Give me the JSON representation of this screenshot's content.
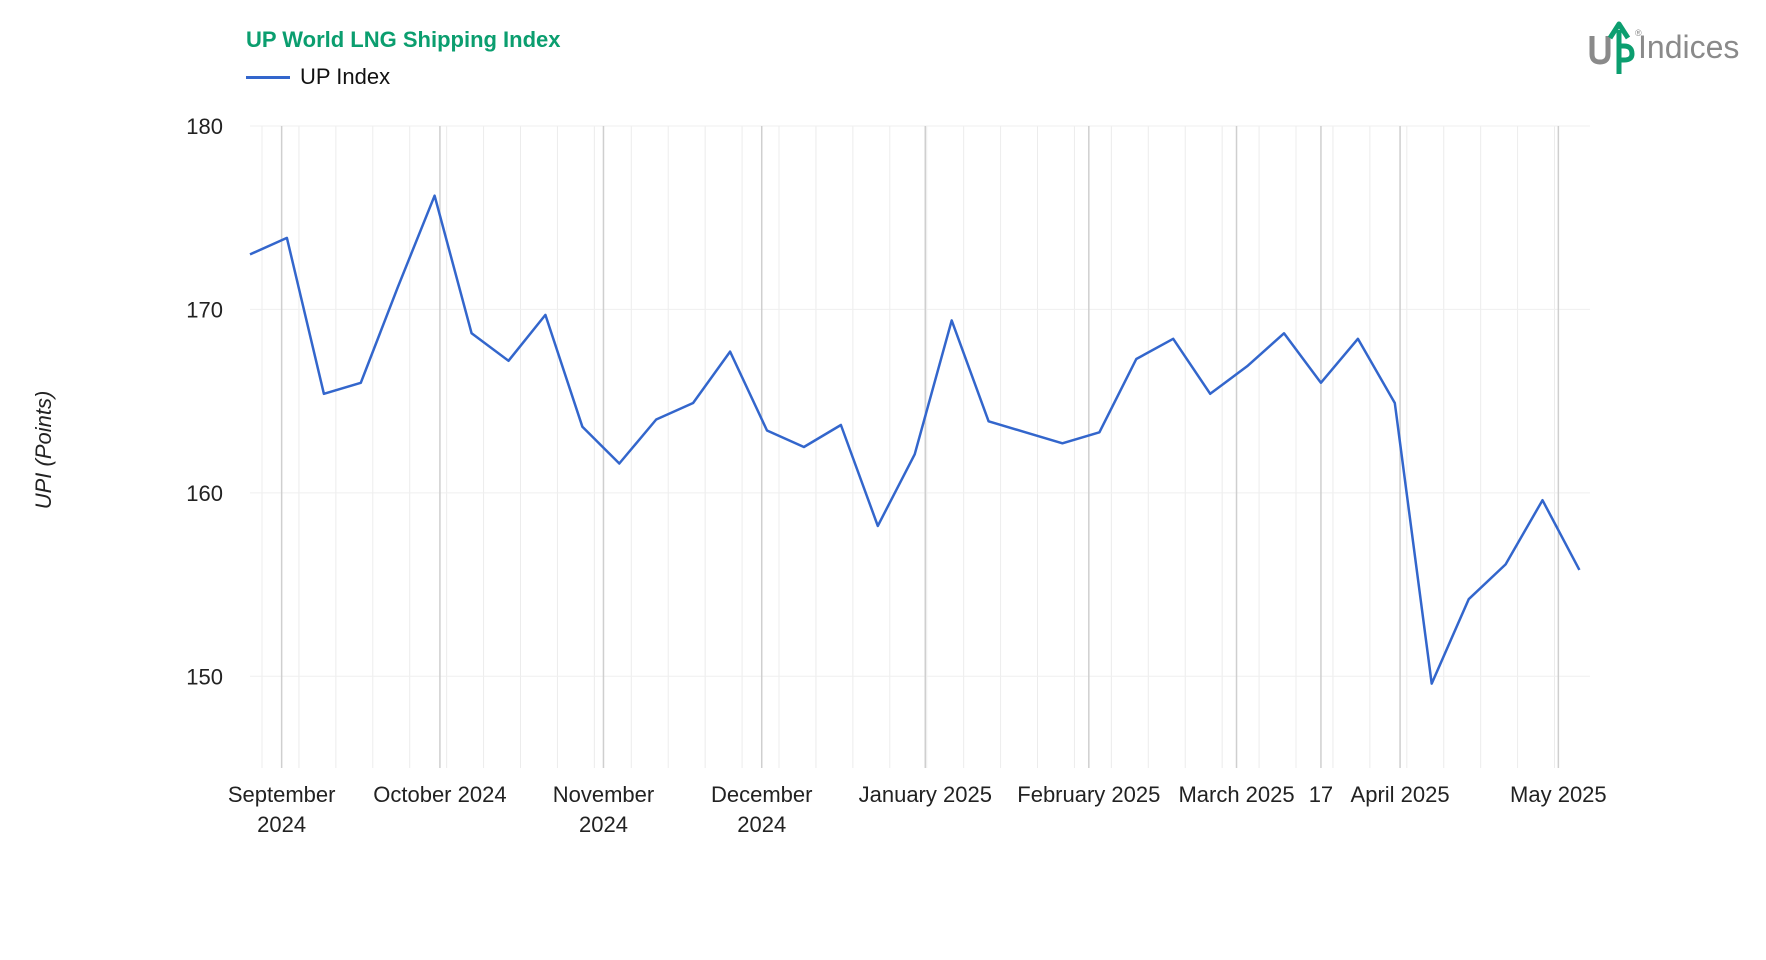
{
  "chart_data": {
    "type": "line",
    "title": "UP World LNG Shipping Index",
    "ylabel": "UPI (Points)",
    "xlabel": "",
    "ylim": [
      145,
      180
    ],
    "yticks": [
      150,
      160,
      170,
      180
    ],
    "grid": true,
    "legend_position": "top-left",
    "xlim": [
      "2024-08-26",
      "2025-05-07"
    ],
    "major_ticks": [
      {
        "date": "2024-09-01",
        "label": [
          "September",
          "2024"
        ]
      },
      {
        "date": "2024-10-01",
        "label": [
          "October 2024"
        ]
      },
      {
        "date": "2024-11-01",
        "label": [
          "November",
          "2024"
        ]
      },
      {
        "date": "2024-12-01",
        "label": [
          "December",
          "2024"
        ]
      },
      {
        "date": "2025-01-01",
        "label": [
          "January 2025"
        ]
      },
      {
        "date": "2025-02-01",
        "label": [
          "February 2025"
        ]
      },
      {
        "date": "2025-03-01",
        "label": [
          "March 2025"
        ]
      },
      {
        "date": "2025-03-17",
        "label": [
          "17"
        ]
      },
      {
        "date": "2025-04-01",
        "label": [
          "April 2025"
        ]
      },
      {
        "date": "2025-05-01",
        "label": [
          "May 2025"
        ]
      }
    ],
    "series": [
      {
        "name": "UP Index",
        "color": "#3366cc",
        "points": [
          {
            "x": "2024-08-26",
            "y": 173.0
          },
          {
            "x": "2024-09-02",
            "y": 173.9
          },
          {
            "x": "2024-09-09",
            "y": 165.4
          },
          {
            "x": "2024-09-16",
            "y": 166.0
          },
          {
            "x": "2024-09-23",
            "y": 171.2
          },
          {
            "x": "2024-09-30",
            "y": 176.2
          },
          {
            "x": "2024-10-07",
            "y": 168.7
          },
          {
            "x": "2024-10-14",
            "y": 167.2
          },
          {
            "x": "2024-10-21",
            "y": 169.7
          },
          {
            "x": "2024-10-28",
            "y": 163.6
          },
          {
            "x": "2024-11-04",
            "y": 161.6
          },
          {
            "x": "2024-11-11",
            "y": 164.0
          },
          {
            "x": "2024-11-18",
            "y": 164.9
          },
          {
            "x": "2024-11-25",
            "y": 167.7
          },
          {
            "x": "2024-12-02",
            "y": 163.4
          },
          {
            "x": "2024-12-09",
            "y": 162.5
          },
          {
            "x": "2024-12-16",
            "y": 163.7
          },
          {
            "x": "2024-12-23",
            "y": 158.2
          },
          {
            "x": "2024-12-30",
            "y": 162.1
          },
          {
            "x": "2025-01-06",
            "y": 169.4
          },
          {
            "x": "2025-01-13",
            "y": 163.9
          },
          {
            "x": "2025-01-20",
            "y": 163.3
          },
          {
            "x": "2025-01-27",
            "y": 162.7
          },
          {
            "x": "2025-02-03",
            "y": 163.3
          },
          {
            "x": "2025-02-10",
            "y": 167.3
          },
          {
            "x": "2025-02-17",
            "y": 168.4
          },
          {
            "x": "2025-02-24",
            "y": 165.4
          },
          {
            "x": "2025-03-03",
            "y": 166.9
          },
          {
            "x": "2025-03-10",
            "y": 168.7
          },
          {
            "x": "2025-03-17",
            "y": 166.0
          },
          {
            "x": "2025-03-24",
            "y": 168.4
          },
          {
            "x": "2025-03-31",
            "y": 164.9
          },
          {
            "x": "2025-04-07",
            "y": 149.6
          },
          {
            "x": "2025-04-14",
            "y": 154.2
          },
          {
            "x": "2025-04-21",
            "y": 156.1
          },
          {
            "x": "2025-04-28",
            "y": 159.6
          },
          {
            "x": "2025-05-05",
            "y": 155.8
          }
        ]
      }
    ]
  },
  "logo": {
    "text": "Indices",
    "mark_color": "#0b9e6f",
    "text_color": "#8a8a8a",
    "icon": "up-indices-logo"
  }
}
